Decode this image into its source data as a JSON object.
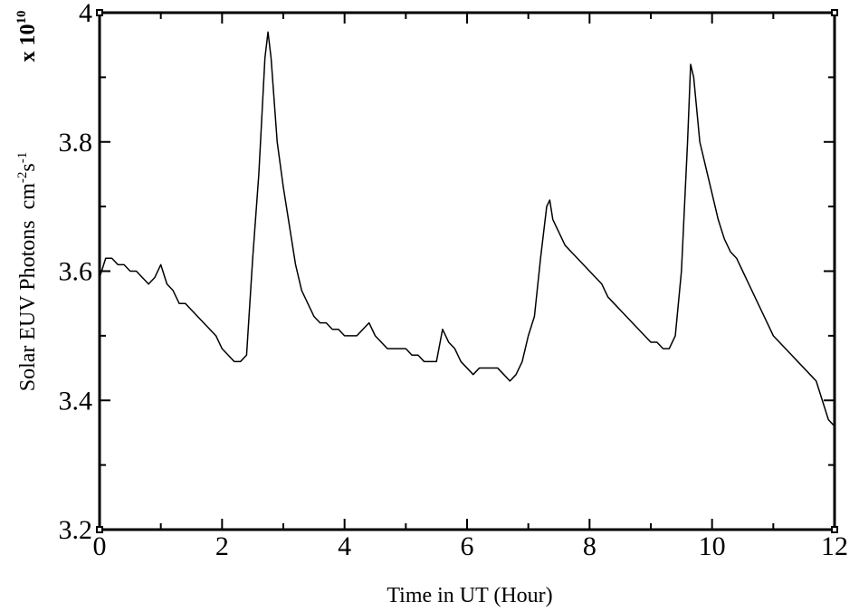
{
  "chart_data": {
    "type": "line",
    "xlabel": "Time in UT (Hour)",
    "ylabel": {
      "main": "Solar EUV Photons",
      "unit1": "cm",
      "exp1": "-2",
      "unit2": "s",
      "exp2": "-1"
    },
    "y_multiplier": {
      "base": "x 10",
      "exponent": "10"
    },
    "color": "#000000",
    "xlim": [
      0,
      12
    ],
    "xticks": [
      0,
      2,
      4,
      6,
      8,
      10,
      12
    ],
    "ylim": [
      3.2,
      4
    ],
    "yticks": [
      3.2,
      3.4,
      3.6,
      3.8,
      4
    ],
    "x": [
      0,
      0.1,
      0.2,
      0.3,
      0.4,
      0.5,
      0.6,
      0.7,
      0.8,
      0.9,
      1,
      1.1,
      1.2,
      1.3,
      1.4,
      1.5,
      1.6,
      1.7,
      1.8,
      1.9,
      2,
      2.1,
      2.2,
      2.3,
      2.4,
      2.5,
      2.6,
      2.7,
      2.75,
      2.8,
      2.9,
      3,
      3.1,
      3.2,
      3.3,
      3.4,
      3.5,
      3.6,
      3.7,
      3.8,
      3.9,
      4,
      4.1,
      4.2,
      4.3,
      4.4,
      4.5,
      4.6,
      4.7,
      4.8,
      4.9,
      5,
      5.1,
      5.2,
      5.3,
      5.4,
      5.5,
      5.6,
      5.7,
      5.8,
      5.9,
      6,
      6.1,
      6.2,
      6.3,
      6.4,
      6.5,
      6.6,
      6.7,
      6.8,
      6.9,
      7,
      7.1,
      7.2,
      7.3,
      7.35,
      7.4,
      7.5,
      7.6,
      7.7,
      7.8,
      7.9,
      8,
      8.1,
      8.2,
      8.3,
      8.4,
      8.5,
      8.6,
      8.7,
      8.8,
      8.9,
      9,
      9.1,
      9.2,
      9.3,
      9.4,
      9.5,
      9.6,
      9.65,
      9.7,
      9.8,
      9.9,
      10,
      10.1,
      10.2,
      10.3,
      10.4,
      10.5,
      10.6,
      10.7,
      10.8,
      10.9,
      11,
      11.1,
      11.2,
      11.3,
      11.4,
      11.5,
      11.6,
      11.7,
      11.8,
      11.9,
      12
    ],
    "values": [
      3.59,
      3.62,
      3.62,
      3.61,
      3.61,
      3.6,
      3.6,
      3.59,
      3.58,
      3.59,
      3.61,
      3.58,
      3.57,
      3.55,
      3.55,
      3.54,
      3.53,
      3.52,
      3.51,
      3.5,
      3.48,
      3.47,
      3.46,
      3.46,
      3.47,
      3.62,
      3.75,
      3.93,
      3.97,
      3.93,
      3.8,
      3.73,
      3.67,
      3.61,
      3.57,
      3.55,
      3.53,
      3.52,
      3.52,
      3.51,
      3.51,
      3.5,
      3.5,
      3.5,
      3.51,
      3.52,
      3.5,
      3.49,
      3.48,
      3.48,
      3.48,
      3.48,
      3.47,
      3.47,
      3.46,
      3.46,
      3.46,
      3.51,
      3.49,
      3.48,
      3.46,
      3.45,
      3.44,
      3.45,
      3.45,
      3.45,
      3.45,
      3.44,
      3.43,
      3.44,
      3.46,
      3.5,
      3.53,
      3.62,
      3.7,
      3.71,
      3.68,
      3.66,
      3.64,
      3.63,
      3.62,
      3.61,
      3.6,
      3.59,
      3.58,
      3.56,
      3.55,
      3.54,
      3.53,
      3.52,
      3.51,
      3.5,
      3.49,
      3.49,
      3.48,
      3.48,
      3.5,
      3.6,
      3.8,
      3.92,
      3.9,
      3.8,
      3.76,
      3.72,
      3.68,
      3.65,
      3.63,
      3.62,
      3.6,
      3.58,
      3.56,
      3.54,
      3.52,
      3.5,
      3.49,
      3.48,
      3.47,
      3.46,
      3.45,
      3.44,
      3.43,
      3.4,
      3.37,
      3.36
    ]
  }
}
